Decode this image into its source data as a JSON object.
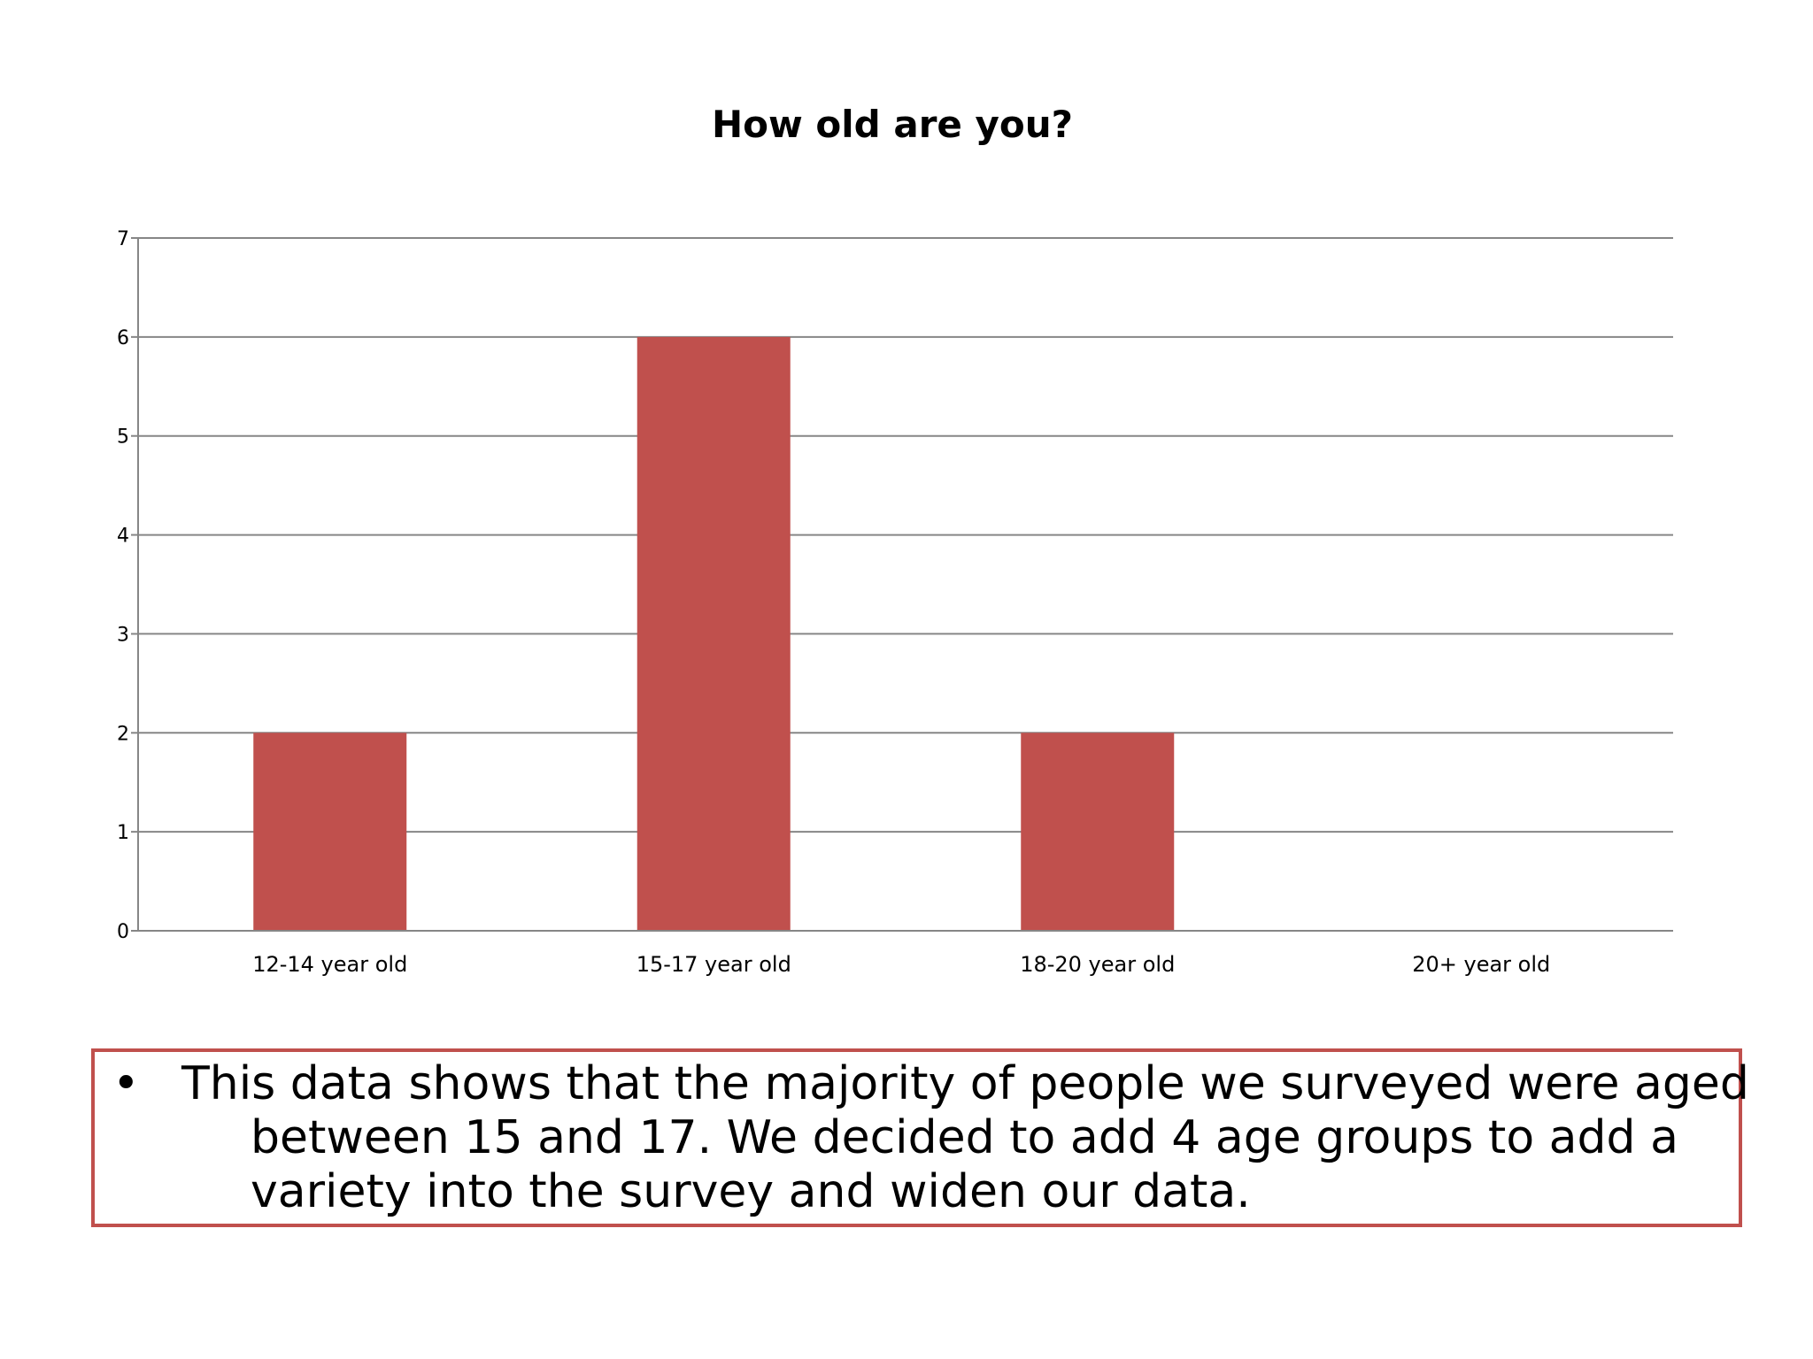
{
  "chart_data": {
    "type": "bar",
    "title": "How old are you?",
    "xlabel": "",
    "ylabel": "",
    "categories": [
      "12-14 year old",
      "15-17 year old",
      "18-20 year old",
      "20+ year old"
    ],
    "values": [
      2,
      6,
      2,
      0
    ],
    "ylim": [
      0,
      7
    ],
    "yticks": [
      "0",
      "1",
      "2",
      "3",
      "4",
      "5",
      "6",
      "7"
    ],
    "grid": true,
    "legend": "none",
    "bar_color": "#c0504d",
    "grid_color": "#868686"
  },
  "note": {
    "bullet": "•",
    "text": "This data shows that the majority of people we surveyed were aged between 15 and 17. We decided to add 4 age groups to add a variety into the survey and widen our data.",
    "border_color": "#c0504d"
  }
}
